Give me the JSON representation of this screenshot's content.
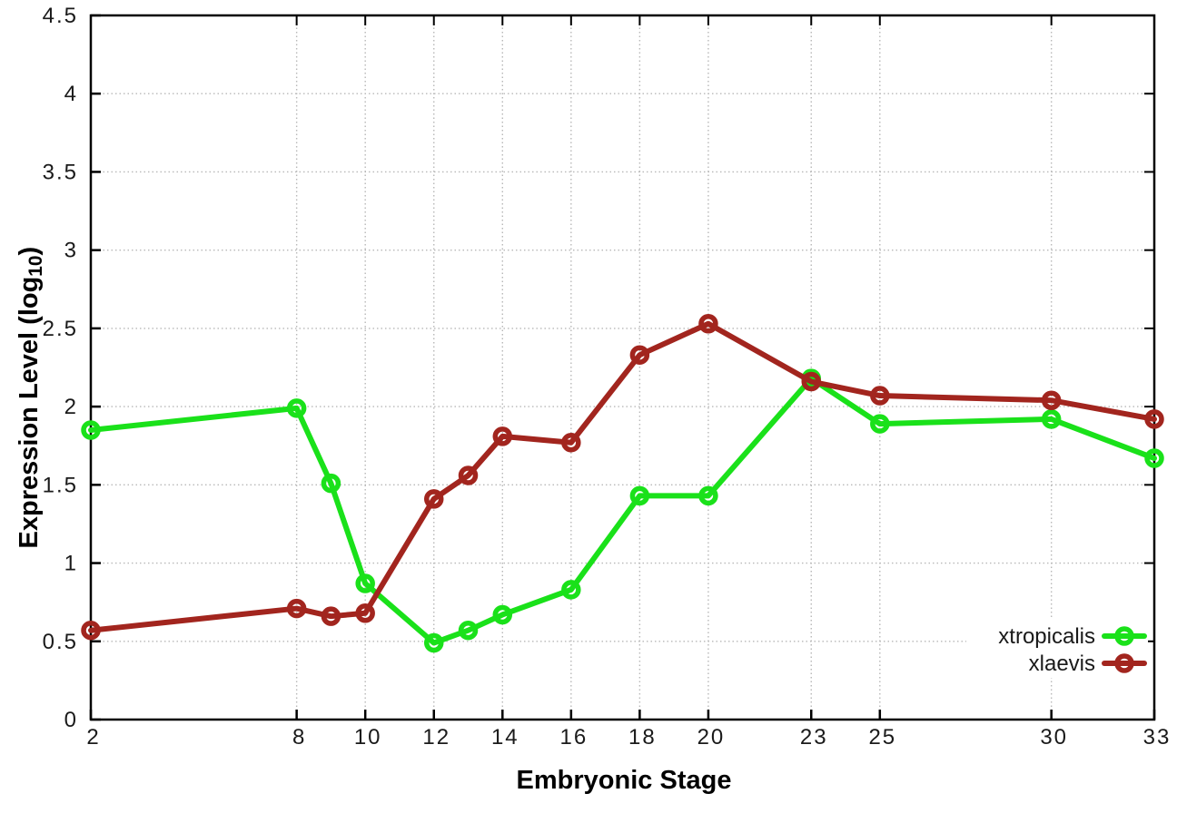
{
  "chart_data": {
    "type": "line",
    "title": "",
    "xlabel": "Embryonic Stage",
    "ylabel": "Expression Level (log10)",
    "ylabel_parts": {
      "pre": "Expression Level (log",
      "sub": "10",
      "post": ")"
    },
    "xlim": [
      2,
      33
    ],
    "ylim": [
      0,
      4.5
    ],
    "grid": true,
    "grid_style": "dotted",
    "legend_position": "inside-bottom-right",
    "marker": "open-circle",
    "x": [
      2,
      8,
      9,
      10,
      12,
      13,
      14,
      16,
      18,
      20,
      23,
      25,
      30,
      33
    ],
    "x_tick_values": [
      2,
      8,
      10,
      12,
      14,
      16,
      18,
      20,
      23,
      25,
      30,
      33
    ],
    "x_tick_labels": [
      "2",
      "8",
      "10",
      "12",
      "14",
      "16",
      "18",
      "20",
      "23",
      "25",
      "30",
      "33"
    ],
    "y_tick_values": [
      0,
      0.5,
      1,
      1.5,
      2,
      2.5,
      3,
      3.5,
      4,
      4.5
    ],
    "y_tick_labels": [
      "0",
      "0.5",
      "1",
      "1.5",
      "2",
      "2.5",
      "3",
      "3.5",
      "4",
      "4.5"
    ],
    "series": [
      {
        "name": "xtropicalis",
        "color": "#1ae11a",
        "values": [
          1.85,
          1.99,
          1.51,
          0.87,
          0.49,
          0.57,
          0.67,
          0.83,
          1.43,
          1.43,
          2.18,
          1.89,
          1.92,
          1.67
        ]
      },
      {
        "name": "xlaevis",
        "color": "#a2251e",
        "values": [
          0.57,
          0.71,
          0.66,
          0.68,
          1.41,
          1.56,
          1.81,
          1.77,
          2.33,
          2.53,
          2.16,
          2.07,
          2.04,
          1.92
        ]
      }
    ],
    "style_colors": {
      "border": "#000000",
      "grid": "#b8b8b8",
      "tick_text": "#1a1a1a",
      "background": "#ffffff"
    }
  }
}
